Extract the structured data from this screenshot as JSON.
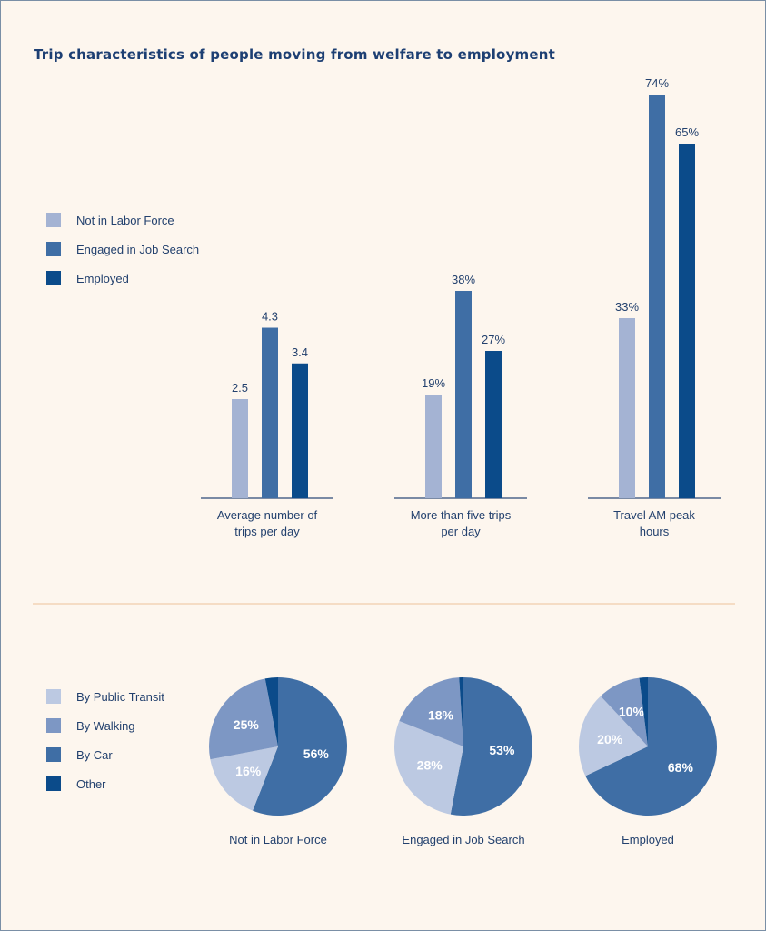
{
  "title": "Trip characteristics of people moving from welfare to employment",
  "colors": {
    "light": "#a4b3d3",
    "mid": "#3f6ea5",
    "dark": "#0b4b8a",
    "transit": "#bcc9e2",
    "walking": "#7d97c4",
    "car": "#3f6ea5",
    "other": "#0b4b8a",
    "background": "#fdf6ee"
  },
  "bar_legend": [
    {
      "label": "Not in Labor Force",
      "color": "#a4b3d3"
    },
    {
      "label": "Engaged in Job Search",
      "color": "#3f6ea5"
    },
    {
      "label": "Employed",
      "color": "#0b4b8a"
    }
  ],
  "pie_legend": [
    {
      "label": "By Public Transit",
      "color": "#bcc9e2"
    },
    {
      "label": "By Walking",
      "color": "#7d97c4"
    },
    {
      "label": "By Car",
      "color": "#3f6ea5"
    },
    {
      "label": "Other",
      "color": "#0b4b8a"
    }
  ],
  "chart_data": [
    {
      "type": "bar",
      "title": "Trip characteristics of people moving from welfare to employment",
      "categories": [
        "Average number of trips per day",
        "More than five trips per day",
        "Travel AM peak hours"
      ],
      "category_lines": [
        [
          "Average number of",
          "trips per day"
        ],
        [
          "More than five trips",
          "per day"
        ],
        [
          "Travel AM peak",
          "hours"
        ]
      ],
      "series": [
        {
          "name": "Not in Labor Force",
          "values": [
            2.5,
            19,
            33
          ],
          "labels": [
            "2.5",
            "19%",
            "33%"
          ]
        },
        {
          "name": "Engaged in Job Search",
          "values": [
            4.3,
            38,
            74
          ],
          "labels": [
            "4.3",
            "38%",
            "74%"
          ]
        },
        {
          "name": "Employed",
          "values": [
            3.4,
            27,
            65
          ],
          "labels": [
            "3.4",
            "27%",
            "65%"
          ]
        }
      ],
      "note": "Each category group uses its own value scale",
      "grid": false,
      "legend_position": "left"
    },
    {
      "type": "pie",
      "charts": [
        {
          "name": "Not in Labor Force",
          "slices": [
            {
              "label": "By Car",
              "value": 56,
              "text": "56%"
            },
            {
              "label": "By Public Transit",
              "value": 16,
              "text": "16%"
            },
            {
              "label": "By Walking",
              "value": 25,
              "text": "25%"
            },
            {
              "label": "Other",
              "value": 3,
              "text": ""
            }
          ]
        },
        {
          "name": "Engaged in Job Search",
          "slices": [
            {
              "label": "By Car",
              "value": 53,
              "text": "53%"
            },
            {
              "label": "By Public Transit",
              "value": 28,
              "text": "28%"
            },
            {
              "label": "By Walking",
              "value": 18,
              "text": "18%"
            },
            {
              "label": "Other",
              "value": 1,
              "text": ""
            }
          ]
        },
        {
          "name": "Employed",
          "slices": [
            {
              "label": "By Car",
              "value": 68,
              "text": "68%"
            },
            {
              "label": "By Public Transit",
              "value": 20,
              "text": "20%"
            },
            {
              "label": "By Walking",
              "value": 10,
              "text": "10%"
            },
            {
              "label": "Other",
              "value": 2,
              "text": ""
            }
          ]
        }
      ],
      "legend_position": "left"
    }
  ]
}
